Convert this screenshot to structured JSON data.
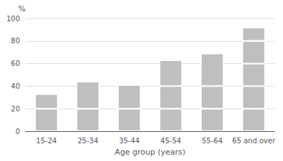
{
  "chart_data": {
    "type": "bar",
    "stacked": true,
    "xlabel": "Age group (years)",
    "ylabel": "%",
    "categories": [
      "15-24",
      "25-34",
      "35-44",
      "45-54",
      "55-64",
      "65 and over"
    ],
    "color": "#c0bfbf",
    "series": [
      {
        "values": [
          20,
          20,
          20,
          20,
          20,
          20
        ]
      },
      {
        "values": [
          13,
          24,
          21,
          20,
          20,
          20
        ]
      },
      {
        "values": [
          null,
          null,
          null,
          23,
          29,
          20
        ]
      },
      {
        "values": [
          null,
          null,
          null,
          null,
          null,
          20
        ]
      },
      {
        "values": [
          null,
          null,
          null,
          null,
          null,
          12
        ]
      }
    ],
    "ylim": [
      0,
      100
    ],
    "yticks": [
      0,
      20,
      40,
      60,
      80,
      100
    ],
    "grid": true
  }
}
